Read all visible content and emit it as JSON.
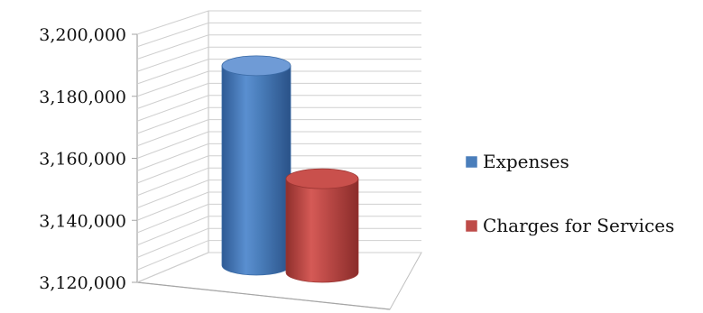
{
  "chart_data": {
    "type": "bar",
    "style": "3d-cylinder",
    "title": "",
    "xlabel": "",
    "ylabel": "",
    "ylim": [
      3120000,
      3200000
    ],
    "y_ticks": [
      3120000,
      3140000,
      3160000,
      3180000,
      3200000
    ],
    "y_tick_labels": [
      "3,120,000",
      "3,140,000",
      "3,160,000",
      "3,180,000",
      "3,200,000"
    ],
    "grid": true,
    "legend_position": "right",
    "series": [
      {
        "name": "Expenses",
        "value": 3186000,
        "color": "#4a7ebb"
      },
      {
        "name": "Charges for Services",
        "value": 3151000,
        "color": "#be4b48"
      }
    ]
  }
}
